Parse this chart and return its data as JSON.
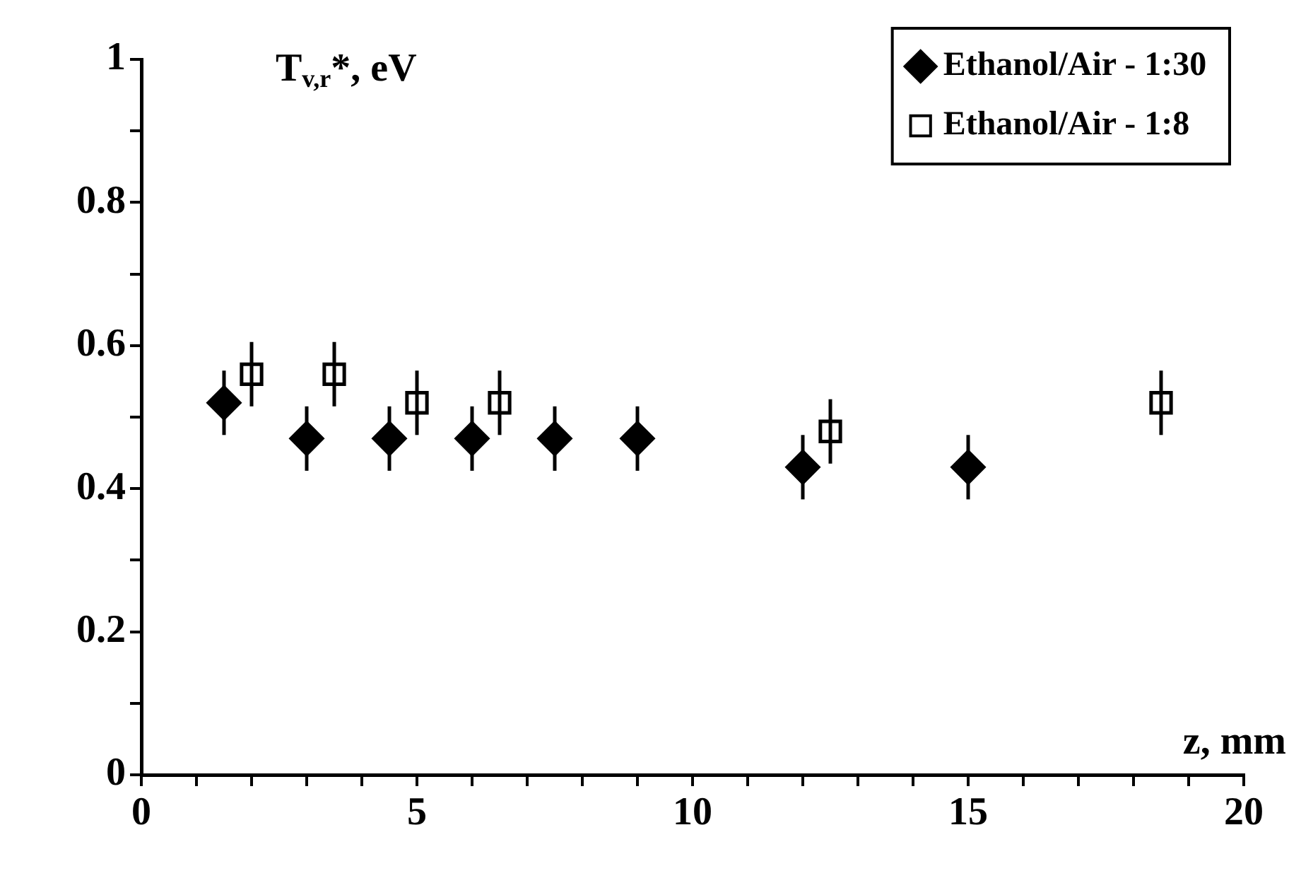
{
  "chart_data": {
    "type": "scatter",
    "ylabel": "T$_{v,r}$*, eV",
    "xlabel": "z, mm",
    "series": [
      {
        "name": "Ethanol/Air - 1:30",
        "color": "#000000",
        "marker": "diamond",
        "x": [
          1.5,
          3,
          4.5,
          6,
          7.5,
          9,
          12,
          15
        ],
        "values": [
          0.52,
          0.47,
          0.47,
          0.47,
          0.47,
          0.47,
          0.43,
          0.43
        ],
        "errors": [
          0.045,
          0.045,
          0.045,
          0.045,
          0.045,
          0.045,
          0.045,
          0.045
        ]
      },
      {
        "name": "Ethanol/Air - 1:8",
        "color": "#000000",
        "marker": "square",
        "x": [
          2,
          3.5,
          5,
          6.5,
          12.5,
          18.5
        ],
        "values": [
          0.56,
          0.56,
          0.52,
          0.52,
          0.48,
          0.52
        ],
        "errors": [
          0.045,
          0.045,
          0.045,
          0.045,
          0.045,
          0.045
        ]
      }
    ],
    "xlim": [
      0,
      20
    ],
    "xticks": [
      0,
      {
        "value": 1,
        "label": null
      },
      {
        "value": 2,
        "label": null
      },
      {
        "value": 3,
        "label": null
      },
      {
        "value": 4,
        "label": null
      },
      5,
      {
        "value": 6,
        "label": null
      },
      {
        "value": 7,
        "label": null
      },
      {
        "value": 8,
        "label": null
      },
      {
        "value": 9,
        "label": null
      },
      10,
      {
        "value": 11,
        "label": null
      },
      {
        "value": 12,
        "label": null
      },
      {
        "value": 13,
        "label": null
      },
      {
        "value": 14,
        "label": null
      },
      15,
      {
        "value": 16,
        "label": null
      },
      {
        "value": 17,
        "label": null
      },
      {
        "value": 18,
        "label": null
      },
      {
        "value": 19,
        "label": null
      },
      20
    ],
    "ylim": [
      0,
      1
    ],
    "yticks": [
      0,
      {
        "value": 0.1,
        "label": null
      },
      0.2,
      {
        "value": 0.3,
        "label": null
      },
      0.4,
      {
        "value": 0.5,
        "label": null
      },
      0.6,
      {
        "value": 0.7,
        "label": null
      },
      0.8,
      {
        "value": 0.9,
        "label": null
      },
      1
    ],
    "grid": false,
    "legend": "top right"
  }
}
